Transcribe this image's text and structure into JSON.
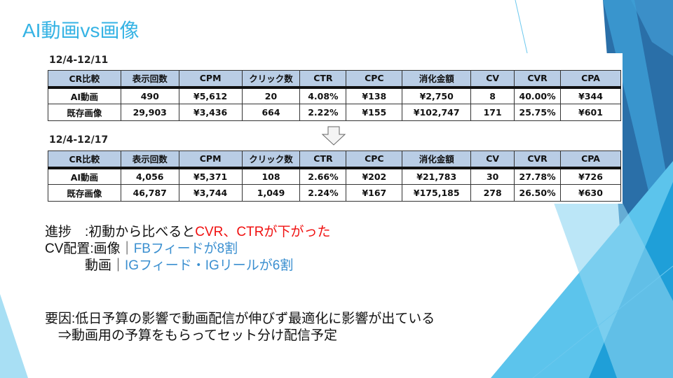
{
  "title": "AI動画vs画像",
  "colors": {
    "accent": "#35b3e4",
    "header_fill": "#b9cde5",
    "highlight_red": "#f01010",
    "highlight_blue": "#3a8fd0"
  },
  "tables": [
    {
      "period": "12/4-12/11",
      "headers": [
        "CR比較",
        "表示回数",
        "CPM",
        "クリック数",
        "CTR",
        "CPC",
        "消化金額",
        "CV",
        "CVR",
        "CPA"
      ],
      "rows": [
        [
          "AI動画",
          "490",
          "¥5,612",
          "20",
          "4.08%",
          "¥138",
          "¥2,750",
          "8",
          "40.00%",
          "¥344"
        ],
        [
          "既存画像",
          "29,903",
          "¥3,436",
          "664",
          "2.22%",
          "¥155",
          "¥102,747",
          "171",
          "25.75%",
          "¥601"
        ]
      ]
    },
    {
      "period": "12/4-12/17",
      "headers": [
        "CR比較",
        "表示回数",
        "CPM",
        "クリック数",
        "CTR",
        "CPC",
        "消化金額",
        "CV",
        "CVR",
        "CPA"
      ],
      "rows": [
        [
          "AI動画",
          "4,056",
          "¥5,371",
          "108",
          "2.66%",
          "¥202",
          "¥21,783",
          "30",
          "27.78%",
          "¥726"
        ],
        [
          "既存画像",
          "46,787",
          "¥3,744",
          "1,049",
          "2.24%",
          "¥167",
          "¥175,185",
          "278",
          "26.50%",
          "¥630"
        ]
      ]
    }
  ],
  "notes": {
    "progress_label": "進捗　:初動から比べると",
    "progress_red": "CVR、CTRが下がった",
    "cv_label": "CV配置:画像｜",
    "cv_image_blue": "FBフィードが8割",
    "cv_video_label": "　　　動画｜",
    "cv_video_blue": "IGフィード・IGリールが6割",
    "cause": "要因:低日予算の影響で動画配信が伸びず最適化に影響が出ている",
    "plan": "　⇒動画用の予算をもらってセット分け配信予定"
  }
}
